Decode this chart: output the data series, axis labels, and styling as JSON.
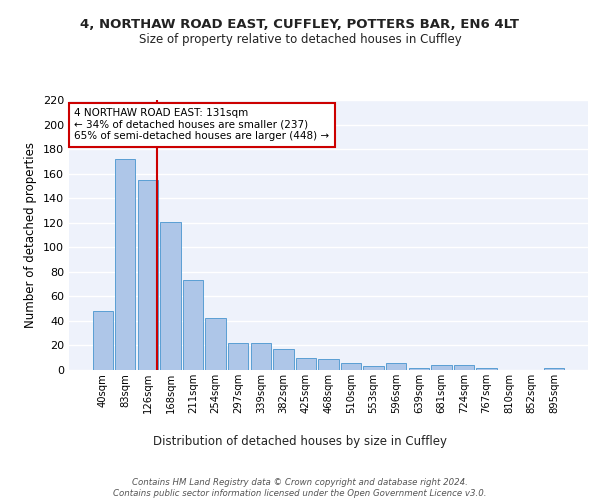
{
  "title1": "4, NORTHAW ROAD EAST, CUFFLEY, POTTERS BAR, EN6 4LT",
  "title2": "Size of property relative to detached houses in Cuffley",
  "xlabel": "Distribution of detached houses by size in Cuffley",
  "ylabel": "Number of detached properties",
  "categories": [
    "40sqm",
    "83sqm",
    "126sqm",
    "168sqm",
    "211sqm",
    "254sqm",
    "297sqm",
    "339sqm",
    "382sqm",
    "425sqm",
    "468sqm",
    "510sqm",
    "553sqm",
    "596sqm",
    "639sqm",
    "681sqm",
    "724sqm",
    "767sqm",
    "810sqm",
    "852sqm",
    "895sqm"
  ],
  "values": [
    48,
    172,
    155,
    121,
    73,
    42,
    22,
    22,
    17,
    10,
    9,
    6,
    3,
    6,
    2,
    4,
    4,
    2,
    0,
    0,
    2
  ],
  "bar_color": "#aec6e8",
  "bar_edge_color": "#5a9fd4",
  "background_color": "#eef2fb",
  "grid_color": "#ffffff",
  "annotation_text": "4 NORTHAW ROAD EAST: 131sqm\n← 34% of detached houses are smaller (237)\n65% of semi-detached houses are larger (448) →",
  "annotation_box_color": "#ffffff",
  "annotation_box_edge": "#cc0000",
  "footer_text": "Contains HM Land Registry data © Crown copyright and database right 2024.\nContains public sector information licensed under the Open Government Licence v3.0.",
  "ylim": [
    0,
    220
  ],
  "yticks": [
    0,
    20,
    40,
    60,
    80,
    100,
    120,
    140,
    160,
    180,
    200,
    220
  ],
  "red_line_x": 2.42
}
